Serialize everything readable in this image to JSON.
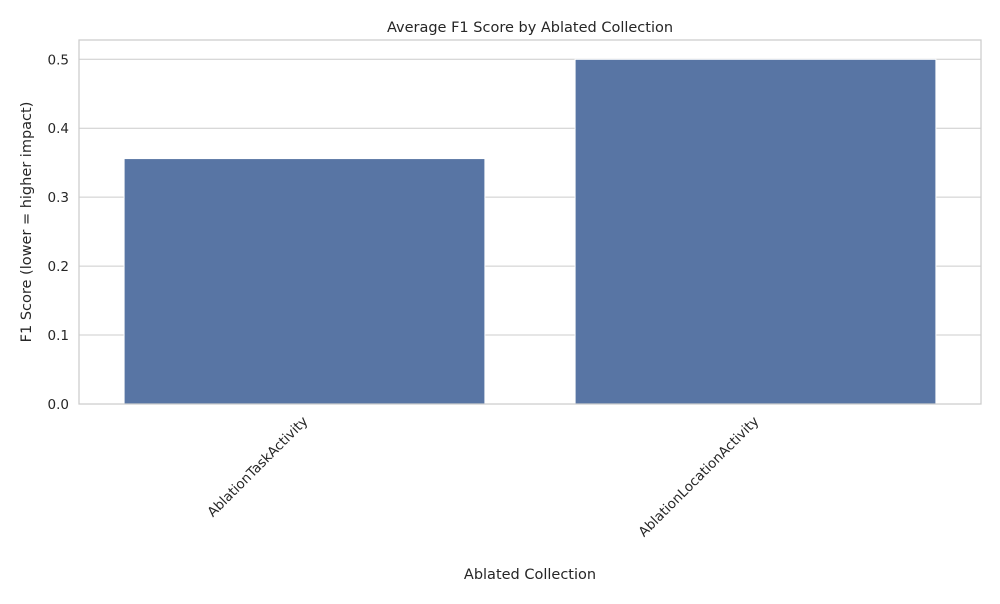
{
  "chart_data": {
    "type": "bar",
    "title": "Average F1 Score by Ablated Collection",
    "xlabel": "Ablated Collection",
    "ylabel": "F1 Score (lower = higher impact)",
    "categories": [
      "AblationTaskActivity",
      "AblationLocationActivity"
    ],
    "values": [
      0.356,
      0.5
    ],
    "ylim": [
      0,
      0.528
    ],
    "yticks": [
      0.0,
      0.1,
      0.2,
      0.3,
      0.4,
      0.5
    ],
    "ytick_labels": [
      "0.0",
      "0.1",
      "0.2",
      "0.3",
      "0.4",
      "0.5"
    ],
    "x_tick_rotation": 45,
    "grid": "y",
    "legend": "none",
    "colors": {
      "bar": "#5875a4",
      "grid": "#cccccc",
      "spine": "#cccccc",
      "text": "#262626"
    }
  }
}
